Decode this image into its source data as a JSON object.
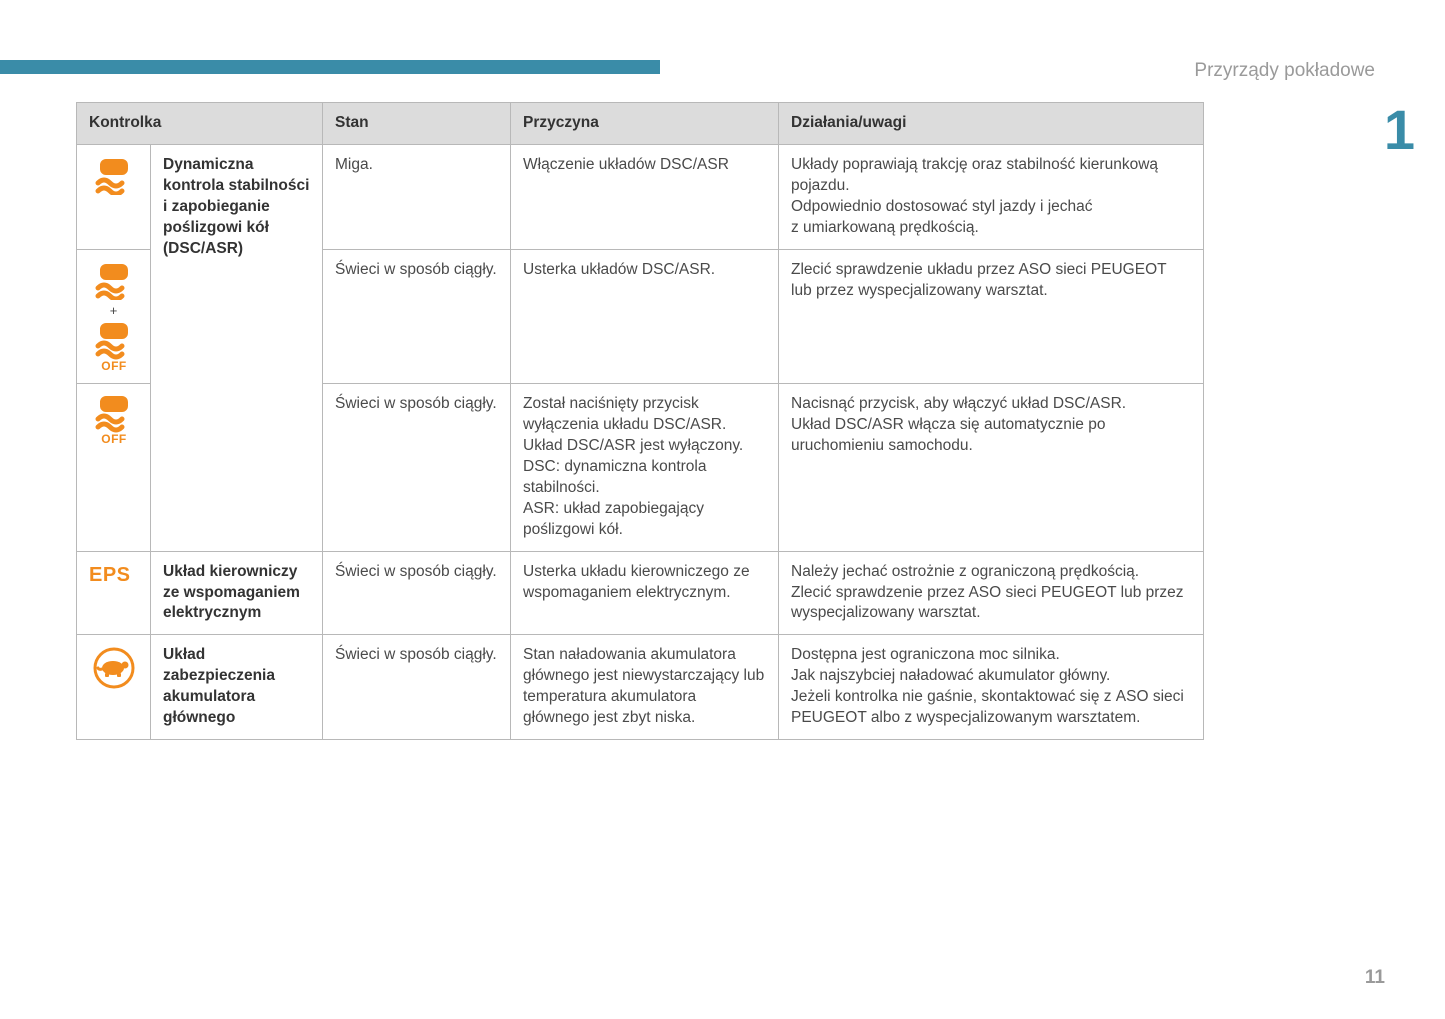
{
  "section_title": "Przyrządy pokładowe",
  "side_tab": "1",
  "page_number": "11",
  "colors": {
    "accent": "#3a8ca8",
    "icon": "#f28c1e",
    "header_bg": "#dcdcdc",
    "border": "#b8b8b8",
    "text": "#4a4a4a",
    "muted": "#9a9a9a"
  },
  "headers": {
    "c1": "Kontrolka",
    "c2": "Stan",
    "c3": "Przyczyna",
    "c4": "Działania/uwagi"
  },
  "rows": {
    "r1": {
      "name": "Dynamiczna kontrola stabilności i zapobieganie poślizgowi kół (DSC/ASR)",
      "state": "Miga.",
      "cause": "Włączenie układów DSC/ASR",
      "action": "Układy poprawiają trakcję oraz stabilność kierunkową pojazdu.\nOdpowiednio dostosować styl jazdy i jechać z umiarkowaną prędkością."
    },
    "r2": {
      "state": "Świeci w sposób ciągły.",
      "cause": "Usterka układów DSC/ASR.",
      "action": "Zlecić sprawdzenie układu przez ASO sieci PEUGEOT lub przez wyspecjalizowany warsztat."
    },
    "r3": {
      "state": "Świeci w sposób ciągły.",
      "cause": "Został naciśnięty przycisk wyłączenia układu DSC/ASR.\nUkład DSC/ASR jest wyłączony.\nDSC: dynamiczna kontrola stabilności.\nASR: układ zapobiegający poślizgowi kół.",
      "action": "Nacisnąć przycisk, aby włączyć układ DSC/ASR.\nUkład DSC/ASR włącza się automatycznie po uruchomieniu samochodu."
    },
    "r4": {
      "name": "Układ kierowniczy ze wspomaganiem elektrycznym",
      "state": "Świeci w sposób ciągły.",
      "cause": "Usterka układu kierowniczego ze wspomaganiem elektrycznym.",
      "action": "Należy jechać ostrożnie z ograniczoną prędkością.\nZlecić sprawdzenie przez ASO sieci PEUGEOT lub przez wyspecjalizowany warsztat."
    },
    "r5": {
      "name": "Układ zabezpieczenia akumulatora głównego",
      "state": "Świeci w sposób ciągły.",
      "cause": "Stan naładowania akumulatora głównego jest niewystarczający lub temperatura akumulatora głównego jest zbyt niska.",
      "action": "Dostępna jest ograniczona moc silnika.\nJak najszybciej naładować akumulator główny.\nJeżeli kontrolka nie gaśnie, skontaktować się z ASO sieci PEUGEOT albo z wyspecjalizowanym warsztatem."
    }
  }
}
